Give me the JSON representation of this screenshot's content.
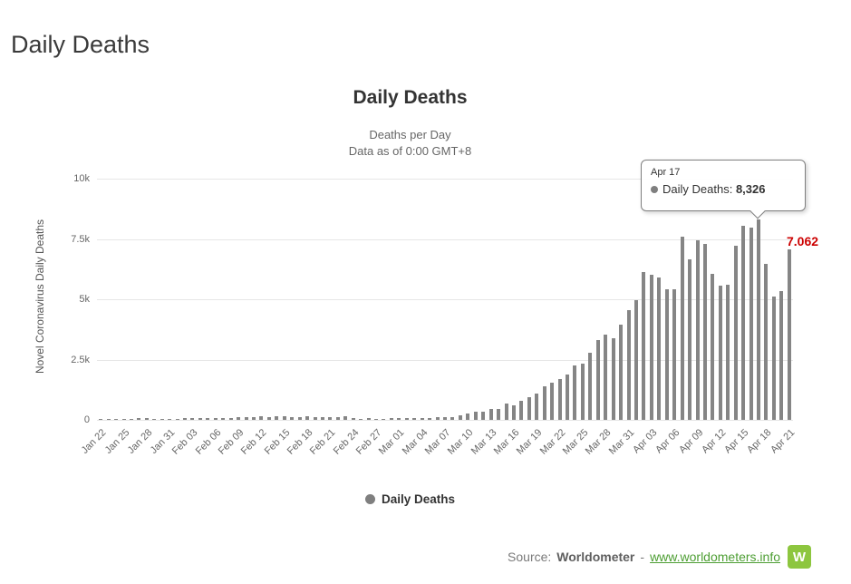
{
  "page": {
    "title": "Daily Deaths"
  },
  "chart": {
    "title": "Daily Deaths",
    "subtitle1": "Deaths per Day",
    "subtitle2": "Data as of 0:00 GMT+8",
    "y_axis_title": "Novel Coronavirus Daily Deaths",
    "legend_label": "Daily Deaths",
    "last_point_label": "7.062",
    "colors": {
      "bar": "#858585",
      "grid": "#e6e6e6",
      "annotation": "#cc0000",
      "brand_green": "#8dc63f"
    }
  },
  "tooltip": {
    "date": "Apr 17",
    "series": "Daily Deaths:",
    "value": "8,326"
  },
  "footer": {
    "source_label": "Source:",
    "source_name": "Worldometer",
    "separator": "-",
    "link": "www.worldometers.info",
    "logo_letter": "W"
  },
  "chart_data": {
    "type": "bar",
    "title": "Daily Deaths",
    "subtitle": "Deaths per Day — Data as of 0:00 GMT+8",
    "xlabel": "",
    "ylabel": "Novel Coronavirus Daily Deaths",
    "ylim": [
      0,
      10000
    ],
    "yticks": [
      "0",
      "2.5k",
      "5k",
      "7.5k",
      "10k"
    ],
    "ytick_values": [
      0,
      2500,
      5000,
      7500,
      10000
    ],
    "x_tick_every": 3,
    "grid": true,
    "legend_position": "bottom",
    "highlighted_point": {
      "category": "Apr 17",
      "value": 8326
    },
    "last_point": {
      "category": "Apr 21",
      "value": 7062
    },
    "categories": [
      "Jan 22",
      "Jan 23",
      "Jan 24",
      "Jan 25",
      "Jan 26",
      "Jan 27",
      "Jan 28",
      "Jan 29",
      "Jan 30",
      "Jan 31",
      "Feb 01",
      "Feb 02",
      "Feb 03",
      "Feb 04",
      "Feb 05",
      "Feb 06",
      "Feb 07",
      "Feb 08",
      "Feb 09",
      "Feb 10",
      "Feb 11",
      "Feb 12",
      "Feb 13",
      "Feb 14",
      "Feb 15",
      "Feb 16",
      "Feb 17",
      "Feb 18",
      "Feb 19",
      "Feb 20",
      "Feb 21",
      "Feb 22",
      "Feb 23",
      "Feb 24",
      "Feb 25",
      "Feb 26",
      "Feb 27",
      "Feb 28",
      "Feb 29",
      "Mar 01",
      "Mar 02",
      "Mar 03",
      "Mar 04",
      "Mar 05",
      "Mar 06",
      "Mar 07",
      "Mar 08",
      "Mar 09",
      "Mar 10",
      "Mar 11",
      "Mar 12",
      "Mar 13",
      "Mar 14",
      "Mar 15",
      "Mar 16",
      "Mar 17",
      "Mar 18",
      "Mar 19",
      "Mar 20",
      "Mar 21",
      "Mar 22",
      "Mar 23",
      "Mar 24",
      "Mar 25",
      "Mar 26",
      "Mar 27",
      "Mar 28",
      "Mar 29",
      "Mar 30",
      "Mar 31",
      "Apr 01",
      "Apr 02",
      "Apr 03",
      "Apr 04",
      "Apr 05",
      "Apr 06",
      "Apr 07",
      "Apr 08",
      "Apr 09",
      "Apr 10",
      "Apr 11",
      "Apr 12",
      "Apr 13",
      "Apr 14",
      "Apr 15",
      "Apr 16",
      "Apr 17",
      "Apr 18",
      "Apr 19",
      "Apr 20",
      "Apr 21"
    ],
    "values": [
      11,
      9,
      26,
      42,
      56,
      65,
      66,
      38,
      43,
      46,
      46,
      58,
      64,
      66,
      72,
      73,
      86,
      89,
      97,
      108,
      97,
      146,
      121,
      143,
      142,
      106,
      98,
      136,
      115,
      118,
      109,
      97,
      150,
      71,
      52,
      60,
      44,
      47,
      67,
      58,
      72,
      73,
      84,
      80,
      103,
      99,
      110,
      200,
      271,
      321,
      351,
      438,
      436,
      671,
      602,
      793,
      934,
      1085,
      1383,
      1525,
      1682,
      1873,
      2273,
      2343,
      2796,
      3297,
      3528,
      3388,
      3931,
      4548,
      4951,
      6114,
      6033,
      5894,
      5426,
      5398,
      7600,
      6668,
      7427,
      7296,
      6050,
      5566,
      5584,
      7201,
      8039,
      7960,
      8326,
      6480,
      5125,
      5341,
      7062
    ]
  }
}
